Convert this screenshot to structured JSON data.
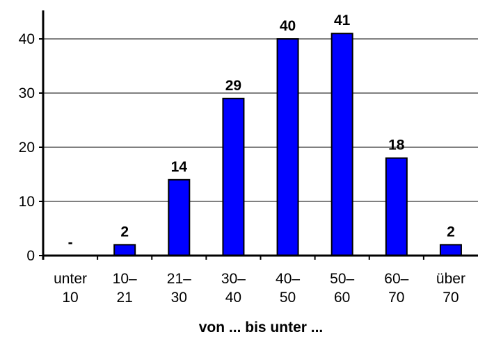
{
  "chart_data": {
    "type": "bar",
    "categories": [
      [
        "unter",
        "10"
      ],
      [
        "10–",
        "21"
      ],
      [
        "21–",
        "30"
      ],
      [
        "30–",
        "40"
      ],
      [
        "40–",
        "50"
      ],
      [
        "50–",
        "60"
      ],
      [
        "60–",
        "70"
      ],
      [
        "über",
        "70"
      ]
    ],
    "values": [
      0,
      2,
      14,
      29,
      40,
      41,
      18,
      2
    ],
    "data_labels": [
      "-",
      "2",
      "14",
      "29",
      "40",
      "41",
      "18",
      "2"
    ],
    "yticks": [
      0,
      10,
      20,
      30,
      40
    ],
    "ylim": [
      0,
      40
    ],
    "xlabel": "von ... bis unter ...",
    "ylabel": "",
    "title": "",
    "grid": true,
    "bar_color": "#0000ff",
    "bar_stroke": "#000000"
  }
}
